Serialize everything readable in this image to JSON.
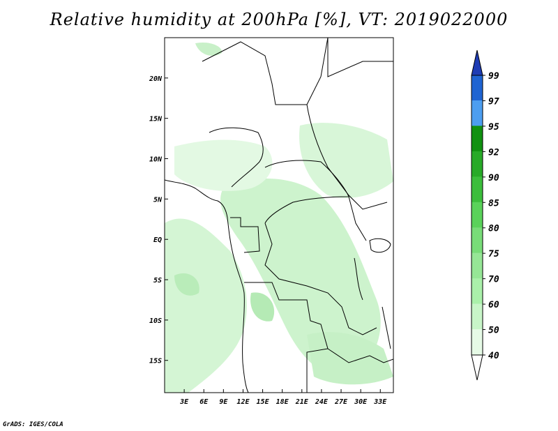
{
  "title": "Relative humidity at 200hPa [%], VT: 2019022000",
  "credit": "GrADS: IGES/COLA",
  "map": {
    "lon_range": [
      0,
      35
    ],
    "lat_range": [
      -19,
      25
    ],
    "lon_ticks": [
      "3E",
      "6E",
      "9E",
      "12E",
      "15E",
      "18E",
      "21E",
      "24E",
      "27E",
      "30E",
      "33E"
    ],
    "lat_ticks": [
      "20N",
      "15N",
      "10N",
      "5N",
      "EQ",
      "5S",
      "10S",
      "15S"
    ],
    "field": "relative humidity",
    "background_color": "#ffffff",
    "coastline_color": "#000000"
  },
  "colorbar": {
    "levels": [
      "40",
      "50",
      "60",
      "70",
      "75",
      "80",
      "85",
      "90",
      "92",
      "95",
      "97",
      "99"
    ],
    "colors": [
      "#ffffff",
      "#e6fae6",
      "#c8f5c8",
      "#aaf0aa",
      "#96e696",
      "#78dc78",
      "#5ad25a",
      "#3cbe3c",
      "#28aa28",
      "#119111",
      "#4d9ef0",
      "#1f64d2",
      "#1e3cb4"
    ]
  }
}
